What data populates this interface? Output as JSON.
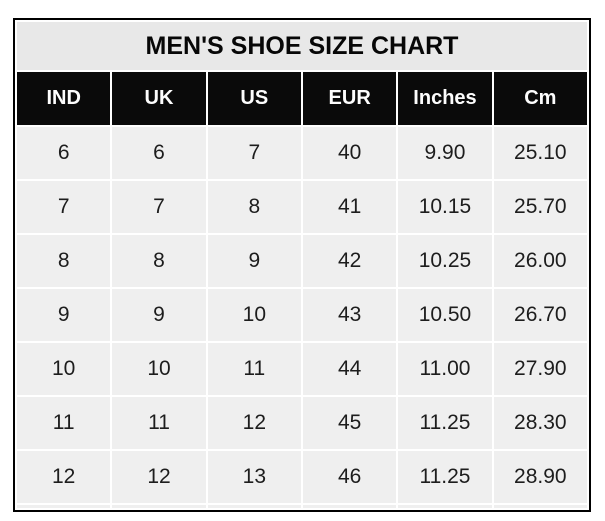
{
  "chart_data": {
    "type": "table",
    "title": "MEN'S SHOE SIZE CHART",
    "columns": [
      "IND",
      "UK",
      "US",
      "EUR",
      "Inches",
      "Cm"
    ],
    "rows": [
      [
        "6",
        "6",
        "7",
        "40",
        "9.90",
        "25.10"
      ],
      [
        "7",
        "7",
        "8",
        "41",
        "10.15",
        "25.70"
      ],
      [
        "8",
        "8",
        "9",
        "42",
        "10.25",
        "26.00"
      ],
      [
        "9",
        "9",
        "10",
        "43",
        "10.50",
        "26.70"
      ],
      [
        "10",
        "10",
        "11",
        "44",
        "11.00",
        "27.90"
      ],
      [
        "11",
        "11",
        "12",
        "45",
        "11.25",
        "28.30"
      ],
      [
        "12",
        "12",
        "13",
        "46",
        "11.25",
        "28.90"
      ]
    ]
  },
  "colors": {
    "outer_border": "#000000",
    "title_background": "#e8e8e8",
    "header_background": "#0a0a0a",
    "header_text": "#fdfdfd",
    "cell_background": "#efefef",
    "cell_text": "#1d1d1d",
    "grid_gap": "#ffffff",
    "page_background": "#ffffff"
  }
}
